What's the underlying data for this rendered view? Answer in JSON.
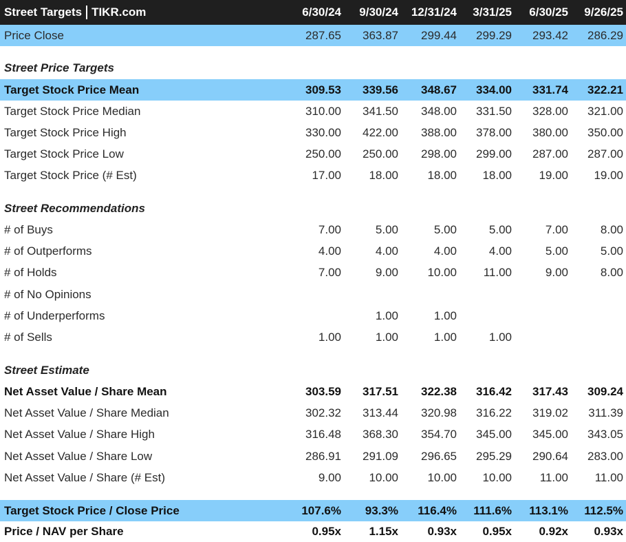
{
  "title": {
    "left": "Street Targets",
    "right": "TIKR.com"
  },
  "columns": [
    "6/30/24",
    "9/30/24",
    "12/31/24",
    "3/31/25",
    "6/30/25",
    "9/26/25"
  ],
  "rows": [
    {
      "label": "Price Close",
      "values": [
        "287.65",
        "363.87",
        "299.44",
        "299.29",
        "293.42",
        "286.29"
      ]
    },
    {
      "label": "Street Price Targets"
    },
    {
      "label": "Target Stock Price Mean",
      "values": [
        "309.53",
        "339.56",
        "348.67",
        "334.00",
        "331.74",
        "322.21"
      ]
    },
    {
      "label": "Target Stock Price Median",
      "values": [
        "310.00",
        "341.50",
        "348.00",
        "331.50",
        "328.00",
        "321.00"
      ]
    },
    {
      "label": "Target Stock Price High",
      "values": [
        "330.00",
        "422.00",
        "388.00",
        "378.00",
        "380.00",
        "350.00"
      ]
    },
    {
      "label": "Target Stock Price Low",
      "values": [
        "250.00",
        "250.00",
        "298.00",
        "299.00",
        "287.00",
        "287.00"
      ]
    },
    {
      "label": "Target Stock Price (# Est)",
      "values": [
        "17.00",
        "18.00",
        "18.00",
        "18.00",
        "19.00",
        "19.00"
      ]
    },
    {
      "label": "Street Recommendations"
    },
    {
      "label": "# of Buys",
      "values": [
        "7.00",
        "5.00",
        "5.00",
        "5.00",
        "7.00",
        "8.00"
      ]
    },
    {
      "label": "# of Outperforms",
      "values": [
        "4.00",
        "4.00",
        "4.00",
        "4.00",
        "5.00",
        "5.00"
      ]
    },
    {
      "label": "# of Holds",
      "values": [
        "7.00",
        "9.00",
        "10.00",
        "11.00",
        "9.00",
        "8.00"
      ]
    },
    {
      "label": "# of No Opinions",
      "values": [
        "",
        "",
        "",
        "",
        "",
        ""
      ]
    },
    {
      "label": "# of Underperforms",
      "values": [
        "",
        "1.00",
        "1.00",
        "",
        "",
        ""
      ]
    },
    {
      "label": "# of Sells",
      "values": [
        "1.00",
        "1.00",
        "1.00",
        "1.00",
        "",
        ""
      ]
    },
    {
      "label": "Street Estimate"
    },
    {
      "label": "Net Asset Value / Share Mean",
      "values": [
        "303.59",
        "317.51",
        "322.38",
        "316.42",
        "317.43",
        "309.24"
      ]
    },
    {
      "label": "Net Asset Value / Share Median",
      "values": [
        "302.32",
        "313.44",
        "320.98",
        "316.22",
        "319.02",
        "311.39"
      ]
    },
    {
      "label": "Net Asset Value / Share High",
      "values": [
        "316.48",
        "368.30",
        "354.70",
        "345.00",
        "345.00",
        "343.05"
      ]
    },
    {
      "label": "Net Asset Value / Share Low",
      "values": [
        "286.91",
        "291.09",
        "296.65",
        "295.29",
        "290.64",
        "283.00"
      ]
    },
    {
      "label": "Net Asset Value / Share (# Est)",
      "values": [
        "9.00",
        "10.00",
        "10.00",
        "10.00",
        "11.00",
        "11.00"
      ]
    },
    {
      "label": "Target Stock Price / Close Price",
      "values": [
        "107.6%",
        "93.3%",
        "116.4%",
        "111.6%",
        "113.1%",
        "112.5%"
      ]
    },
    {
      "label": "Price / NAV per Share",
      "values": [
        "0.95x",
        "1.15x",
        "0.93x",
        "0.95x",
        "0.92x",
        "0.93x"
      ]
    }
  ],
  "colors": {
    "header_bg": "#1f1f1f",
    "highlight": "#87cefa"
  }
}
